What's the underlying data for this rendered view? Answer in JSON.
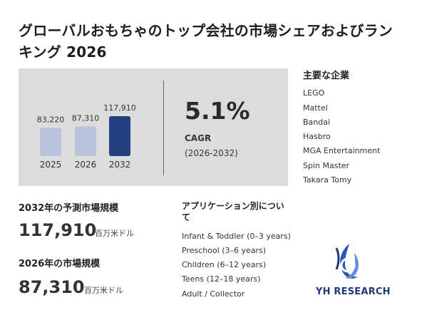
{
  "title": "グローバルおもちゃのトップ会社の市場シェアおよびランキング 2026",
  "chart_data": {
    "type": "bar",
    "categories": [
      "2025",
      "2026",
      "2032"
    ],
    "values": [
      83220,
      87310,
      117910
    ],
    "value_labels": [
      "83,220",
      "87,310",
      "117,910"
    ],
    "colors": [
      "#b8c3db",
      "#b8c3db",
      "#223f80"
    ],
    "title": "",
    "xlabel": "",
    "ylabel": ""
  },
  "cagr": {
    "value": "5.1%",
    "label": "CAGR",
    "range": "(2026-2032)"
  },
  "companies": {
    "title": "主要な企業",
    "items": [
      "LEGO",
      "Mattel",
      "Bandai",
      "Hasbro",
      "MGA Entertainment",
      "Spin Master",
      "Takara Tomy"
    ]
  },
  "forecast": {
    "heading": "2032年の予測市場規模",
    "value": "117,910",
    "unit": "百万米ドル"
  },
  "current": {
    "heading": "2026年の市場規模",
    "value": "87,310",
    "unit": "百万米ドル"
  },
  "applications": {
    "title": "アプリケーション別について",
    "items": [
      "Infant & Toddler (0–3 years)",
      "Preschool (3–6 years)",
      "Children (6–12 years)",
      "Teens (12–18 years)",
      "Adult / Collector"
    ]
  },
  "logo": {
    "text": "YH RESEARCH",
    "color": "#1f3a7a"
  }
}
